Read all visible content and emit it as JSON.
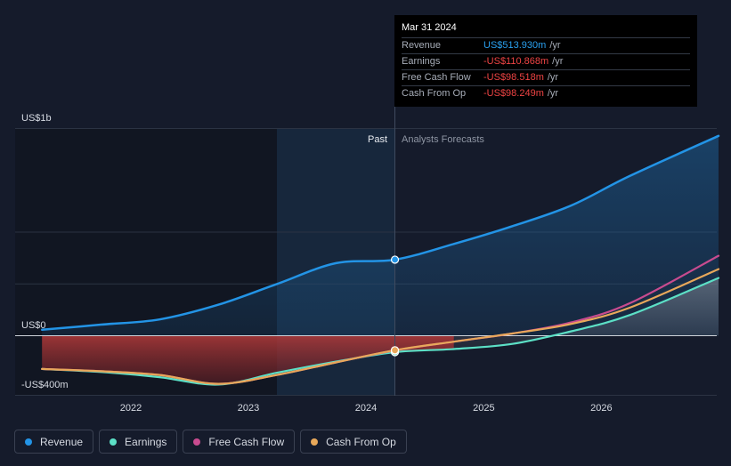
{
  "tooltip": {
    "date": "Mar 31 2024",
    "rows": [
      {
        "label": "Revenue",
        "value": "US$513.930m",
        "unit": "/yr"
      },
      {
        "label": "Earnings",
        "value": "-US$110.868m",
        "unit": "/yr"
      },
      {
        "label": "Free Cash Flow",
        "value": "-US$98.518m",
        "unit": "/yr"
      },
      {
        "label": "Cash From Op",
        "value": "-US$98.249m",
        "unit": "/yr"
      }
    ]
  },
  "chart_data": {
    "type": "line",
    "y_axis_labels": [
      "US$1b",
      "US$0",
      "-US$400m"
    ],
    "x_tick_labels": [
      "2022",
      "2023",
      "2024",
      "2025",
      "2026"
    ],
    "past_label": "Past",
    "forecast_label": "Analysts Forecasts",
    "divider_date": "2024-03-31",
    "ylim": [
      -400,
      1400
    ],
    "grid": true,
    "legend_position": "bottom-left",
    "colors": {
      "Revenue": "#2394e6",
      "Earnings": "#5ce0c6",
      "Free Cash Flow": "#c84b8f",
      "Cash From Op": "#e8a85a",
      "negative_fill": "#b23a3a",
      "background": "#151b2b"
    },
    "series": [
      {
        "name": "Revenue",
        "x": [
          "2021-03-31",
          "2021-09-30",
          "2022-03-31",
          "2022-09-30",
          "2023-03-31",
          "2023-09-30",
          "2024-03-31",
          "2024-09-30",
          "2025-03-31",
          "2025-09-30",
          "2026-03-31",
          "2026-12-31"
        ],
        "y": [
          40,
          75,
          110,
          210,
          350,
          490,
          514,
          620,
          740,
          880,
          1080,
          1350
        ]
      },
      {
        "name": "Earnings",
        "x": [
          "2021-03-31",
          "2021-09-30",
          "2022-03-31",
          "2022-09-30",
          "2023-03-31",
          "2023-09-30",
          "2024-03-31",
          "2024-09-30",
          "2025-03-31",
          "2025-09-30",
          "2026-03-31",
          "2026-12-31"
        ],
        "y": [
          -225,
          -245,
          -280,
          -330,
          -250,
          -175,
          -111,
          -90,
          -55,
          30,
          140,
          390
        ]
      },
      {
        "name": "Free Cash Flow",
        "x": [
          "2021-03-31",
          "2021-09-30",
          "2022-03-31",
          "2022-09-30",
          "2023-03-31",
          "2023-09-30",
          "2024-03-31",
          "2024-09-30",
          "2025-03-31",
          "2025-09-30",
          "2026-03-31",
          "2026-12-31"
        ],
        "y": [
          -225,
          -240,
          -265,
          -325,
          -265,
          -180,
          -99,
          -40,
          15,
          90,
          220,
          540
        ]
      },
      {
        "name": "Cash From Op",
        "x": [
          "2021-03-31",
          "2021-09-30",
          "2022-03-31",
          "2022-09-30",
          "2023-03-31",
          "2023-09-30",
          "2024-03-31",
          "2024-09-30",
          "2025-03-31",
          "2025-09-30",
          "2026-03-31",
          "2026-12-31"
        ],
        "y": [
          -225,
          -240,
          -265,
          -325,
          -265,
          -180,
          -98,
          -40,
          15,
          80,
          190,
          450
        ]
      }
    ]
  }
}
